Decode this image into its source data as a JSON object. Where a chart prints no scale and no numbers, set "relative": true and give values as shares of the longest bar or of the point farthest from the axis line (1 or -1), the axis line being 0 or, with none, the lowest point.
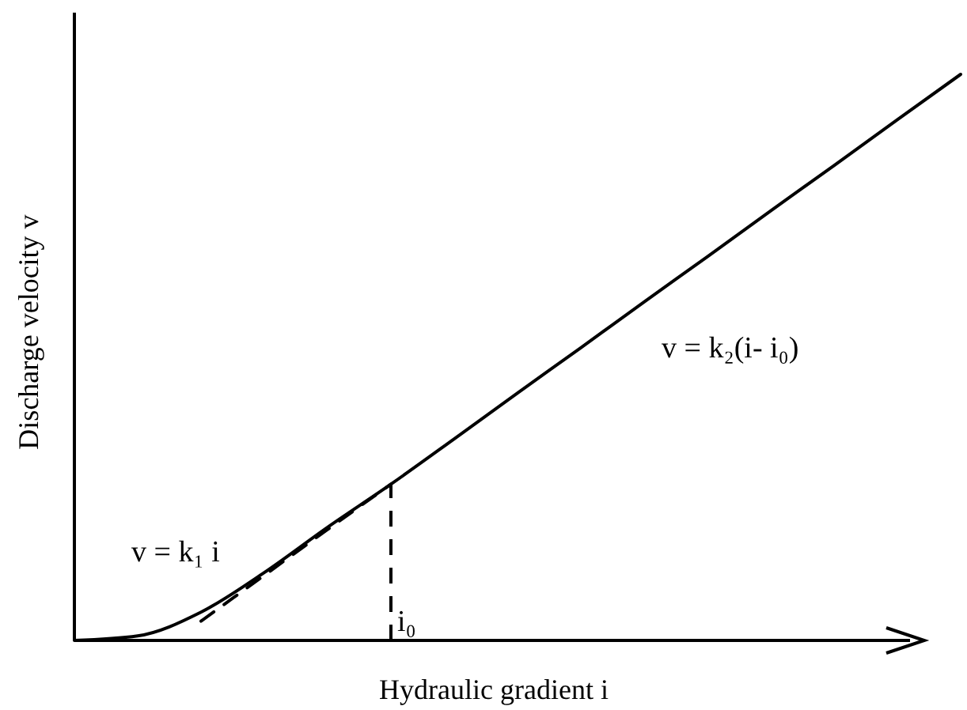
{
  "chart_data": {
    "type": "line",
    "relative": true,
    "xlabel": "Hydraulic gradient  i",
    "ylabel": "Discharge velocity  v",
    "categories": [
      null,
      null,
      null,
      null,
      null,
      null,
      null,
      null,
      null,
      null,
      null,
      null,
      null,
      null,
      null
    ],
    "series": [
      {
        "color": "#000000",
        "line_style": "solid",
        "values": [
          0,
          0.008,
          0.05,
          0.12,
          0.2,
          0.276,
          0.356,
          0.437,
          0.517,
          0.598,
          0.678,
          0.759,
          0.839,
          0.92,
          1.0
        ]
      },
      {
        "color": "#000000",
        "line_style": "dashed",
        "values": [
          null,
          null,
          0.034,
          0.115,
          0.196,
          0.276,
          null,
          null,
          null,
          null,
          null,
          null,
          null,
          null,
          null
        ]
      }
    ],
    "annotations": [
      "v = k₁ i",
      "v = k₂(i- i₀)",
      "i₀"
    ],
    "marker": "none"
  }
}
